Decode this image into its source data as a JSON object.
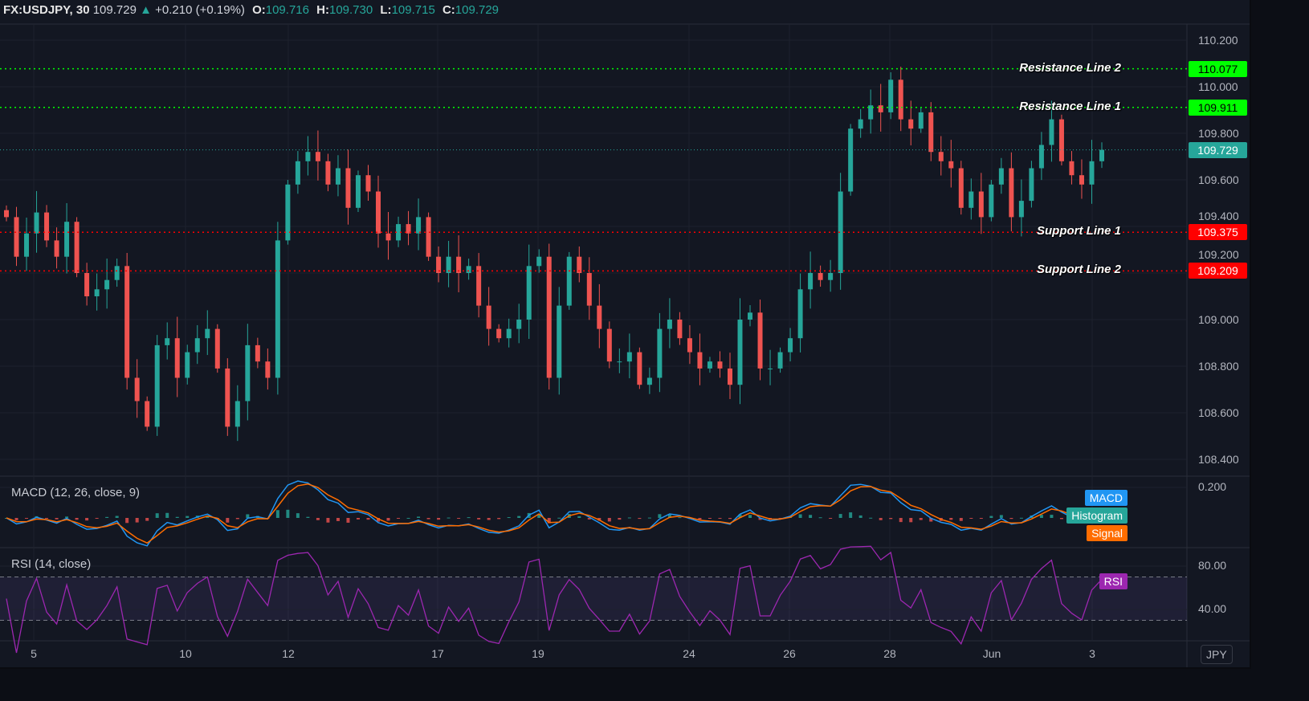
{
  "header": {
    "symbol": "FX:USDJPY, 30",
    "last": "109.729",
    "arrow": "▲",
    "change": "+0.210 (+0.19%)",
    "open_label": "O:",
    "open": "109.716",
    "high_label": "H:",
    "high": "109.730",
    "low_label": "L:",
    "low": "109.715",
    "close_label": "C:",
    "close": "109.729"
  },
  "currency_button": "JPY",
  "colors": {
    "up": "#26a69a",
    "down": "#ef5350",
    "resistance": "#00ff00",
    "support": "#ff0000",
    "macd": "#2196f3",
    "signal": "#ff6d00",
    "histogram": "#26a69a",
    "rsi": "#9c27b0",
    "background": "#131722"
  },
  "chart_data": [
    {
      "type": "candlestick",
      "title": "FX:USDJPY, 30",
      "y_ticks": [
        "110.200",
        "110.000",
        "109.800",
        "109.600",
        "109.400",
        "109.200",
        "109.000",
        "108.800",
        "108.600",
        "108.400"
      ],
      "ylim": [
        108.3,
        110.25
      ],
      "x_ticks": [
        "5",
        "10",
        "12",
        "17",
        "19",
        "24",
        "26",
        "28",
        "Jun",
        "3"
      ],
      "closes": [
        109.44,
        109.27,
        109.37,
        109.46,
        109.34,
        109.27,
        109.42,
        109.2,
        109.1,
        109.13,
        109.17,
        109.23,
        108.75,
        108.65,
        108.54,
        108.89,
        108.92,
        108.75,
        108.86,
        108.92,
        108.96,
        108.79,
        108.54,
        108.65,
        108.89,
        108.82,
        108.75,
        109.34,
        109.58,
        109.68,
        109.72,
        109.68,
        109.58,
        109.65,
        109.48,
        109.62,
        109.55,
        109.37,
        109.34,
        109.41,
        109.37,
        109.44,
        109.27,
        109.2,
        109.27,
        109.2,
        109.23,
        109.06,
        108.96,
        108.92,
        108.96,
        109.0,
        109.23,
        109.27,
        108.75,
        109.06,
        109.27,
        109.2,
        109.06,
        108.96,
        108.82,
        108.82,
        108.86,
        108.72,
        108.75,
        108.96,
        109.0,
        108.92,
        108.86,
        108.79,
        108.82,
        108.79,
        108.72,
        109.0,
        109.03,
        108.79,
        108.79,
        108.86,
        108.92,
        109.13,
        109.2,
        109.17,
        109.2,
        109.55,
        109.82,
        109.86,
        109.92,
        109.89,
        110.03,
        109.86,
        109.82,
        109.89,
        109.72,
        109.68,
        109.65,
        109.48,
        109.55,
        109.44,
        109.58,
        109.65,
        109.44,
        109.51,
        109.65,
        109.75,
        109.86,
        109.68,
        109.62,
        109.58,
        109.68,
        109.729
      ],
      "lines": [
        {
          "name": "Resistance Line 2",
          "value": "110.077",
          "kind": "resistance"
        },
        {
          "name": "Resistance Line 1",
          "value": "109.911",
          "kind": "resistance"
        },
        {
          "name": "Support Line 1",
          "value": "109.375",
          "kind": "support"
        },
        {
          "name": "Support Line 2",
          "value": "109.209",
          "kind": "support"
        }
      ],
      "last_price": "109.729"
    },
    {
      "type": "line",
      "title": "MACD (12, 26, close, 9)",
      "y_ticks": [
        "0.200"
      ],
      "series": [
        {
          "name": "MACD"
        },
        {
          "name": "Histogram"
        },
        {
          "name": "Signal"
        }
      ],
      "params": [
        12,
        26,
        9
      ]
    },
    {
      "type": "line",
      "title": "RSI (14, close)",
      "y_ticks": [
        "80.00",
        "40.00"
      ],
      "bands": [
        70,
        30
      ],
      "series": [
        {
          "name": "RSI"
        }
      ],
      "period": 14
    }
  ]
}
